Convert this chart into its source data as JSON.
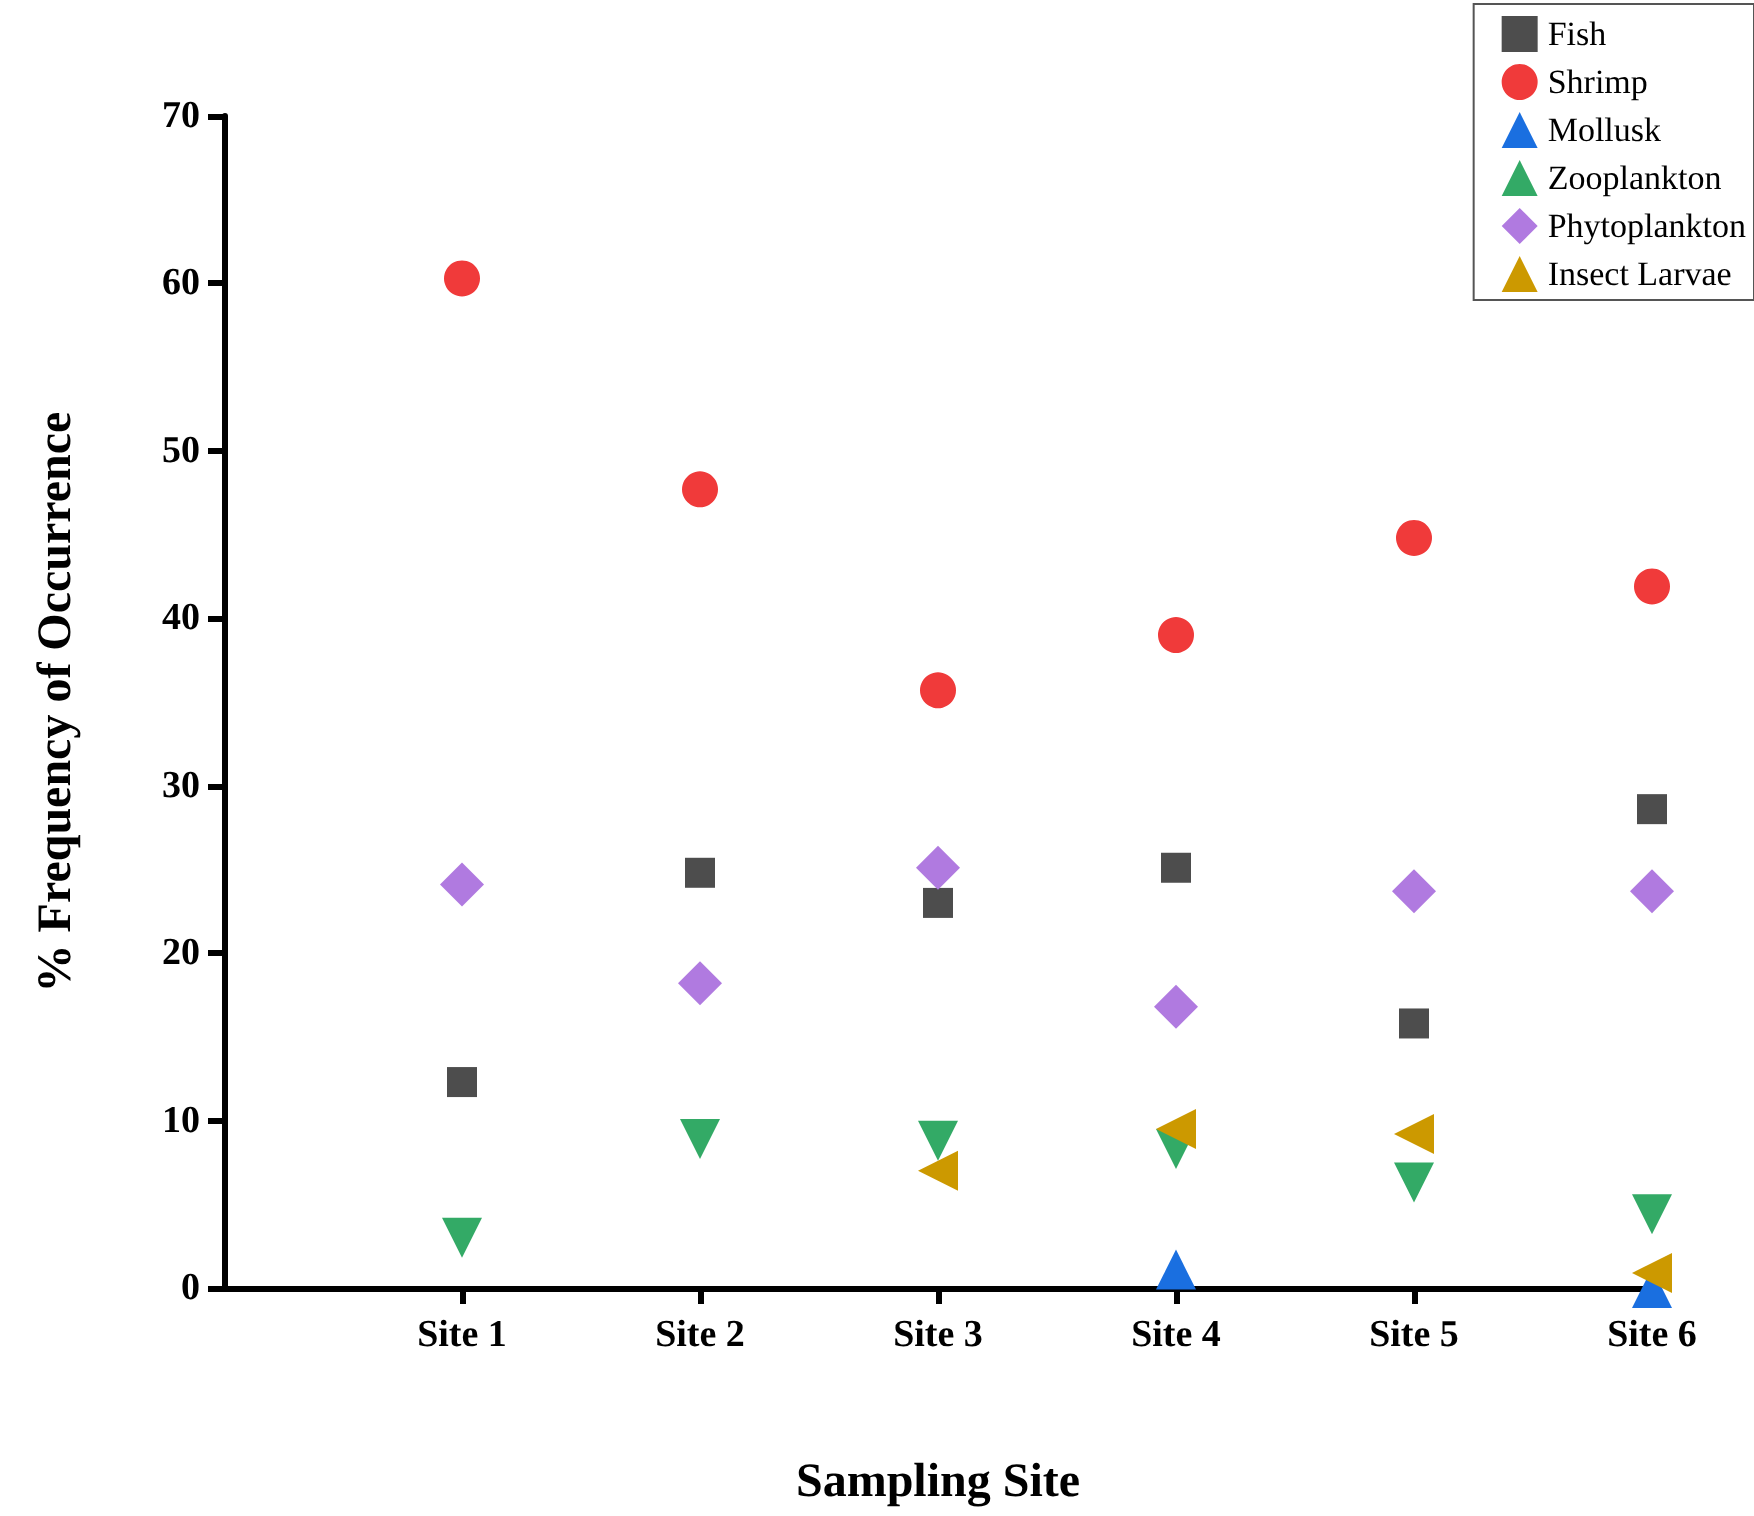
{
  "chart_data": {
    "type": "scatter",
    "xlabel": "Sampling Site",
    "ylabel": "% Frequency of Occurrence",
    "categories": [
      null,
      "Site 1",
      "Site 2",
      "Site 3",
      "Site 4",
      "Site 5",
      "Site 6"
    ],
    "ylim": [
      0,
      70
    ],
    "yticks": [
      0,
      10,
      20,
      30,
      40,
      50,
      60,
      70
    ],
    "grid": false,
    "legend": "top right",
    "series": [
      {
        "name": "Fish",
        "color": "#4d4d4d",
        "marker": "square",
        "values": [
          null,
          12.3,
          24.8,
          23.0,
          25.1,
          15.8,
          28.6
        ]
      },
      {
        "name": "Shrimp",
        "color": "#f03a3a",
        "marker": "circle",
        "values": [
          null,
          60.3,
          47.7,
          35.7,
          39.0,
          44.8,
          41.9
        ]
      },
      {
        "name": "Mollusk",
        "color": "#1a6fe0",
        "marker": "triangle",
        "values": [
          null,
          null,
          null,
          null,
          1.1,
          null,
          0
        ]
      },
      {
        "name": "Zooplankton",
        "color": "#33aa66",
        "marker": "triangle-down",
        "values": [
          null,
          3.0,
          8.9,
          8.8,
          8.3,
          6.3,
          4.4
        ]
      },
      {
        "name": "Phytoplankton",
        "color": "#b07ae0",
        "marker": "diamond",
        "values": [
          null,
          24.1,
          18.2,
          25.1,
          16.8,
          23.7,
          23.7
        ]
      },
      {
        "name": "Insect Larvae",
        "color": "#cc9900",
        "marker": "triangle-left",
        "values": [
          null,
          null,
          null,
          7.0,
          9.5,
          9.2,
          0.9
        ]
      }
    ]
  }
}
